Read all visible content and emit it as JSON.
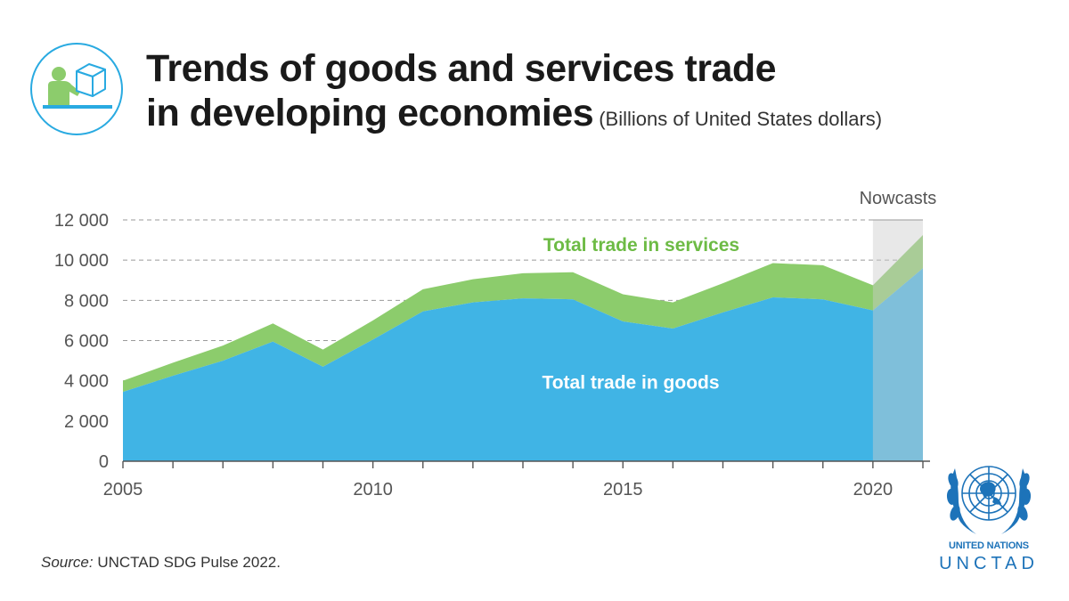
{
  "header": {
    "title_line1": "Trends of goods and services trade",
    "title_line2": "in developing economies",
    "subtitle": "(Billions of United States dollars)"
  },
  "chart_data": {
    "type": "area",
    "stacked": true,
    "x": [
      2005,
      2006,
      2007,
      2008,
      2009,
      2010,
      2011,
      2012,
      2013,
      2014,
      2015,
      2016,
      2017,
      2018,
      2019,
      2020,
      2021
    ],
    "xticks": [
      "2005",
      "2010",
      "2015",
      "2020"
    ],
    "yticks": [
      "0",
      "2 000",
      "4 000",
      "6 000",
      "8 000",
      "10 000",
      "12 000"
    ],
    "ylim": [
      0,
      12000
    ],
    "xlim": [
      2005,
      2021
    ],
    "grid": true,
    "series": [
      {
        "name": "Total trade in goods",
        "color": "#40b4e5",
        "values": [
          3450,
          4250,
          5000,
          5950,
          4700,
          6050,
          7450,
          7900,
          8100,
          8050,
          6950,
          6600,
          7400,
          8150,
          8050,
          7500,
          9600
        ]
      },
      {
        "name": "Total trade in services",
        "color": "#8ccc6c",
        "values": [
          550,
          650,
          750,
          900,
          850,
          950,
          1100,
          1150,
          1250,
          1350,
          1350,
          1300,
          1450,
          1700,
          1700,
          1250,
          1650
        ]
      }
    ],
    "nowcast": {
      "label": "Nowcasts",
      "from": 2020,
      "to": 2021,
      "color": "#cccccc"
    }
  },
  "source": {
    "label": "Source:",
    "text": " UNCTAD SDG Pulse 2022."
  },
  "branding": {
    "line1": "UNITED NATIONS",
    "line2": "UNCTAD",
    "color": "#1d73b9"
  }
}
